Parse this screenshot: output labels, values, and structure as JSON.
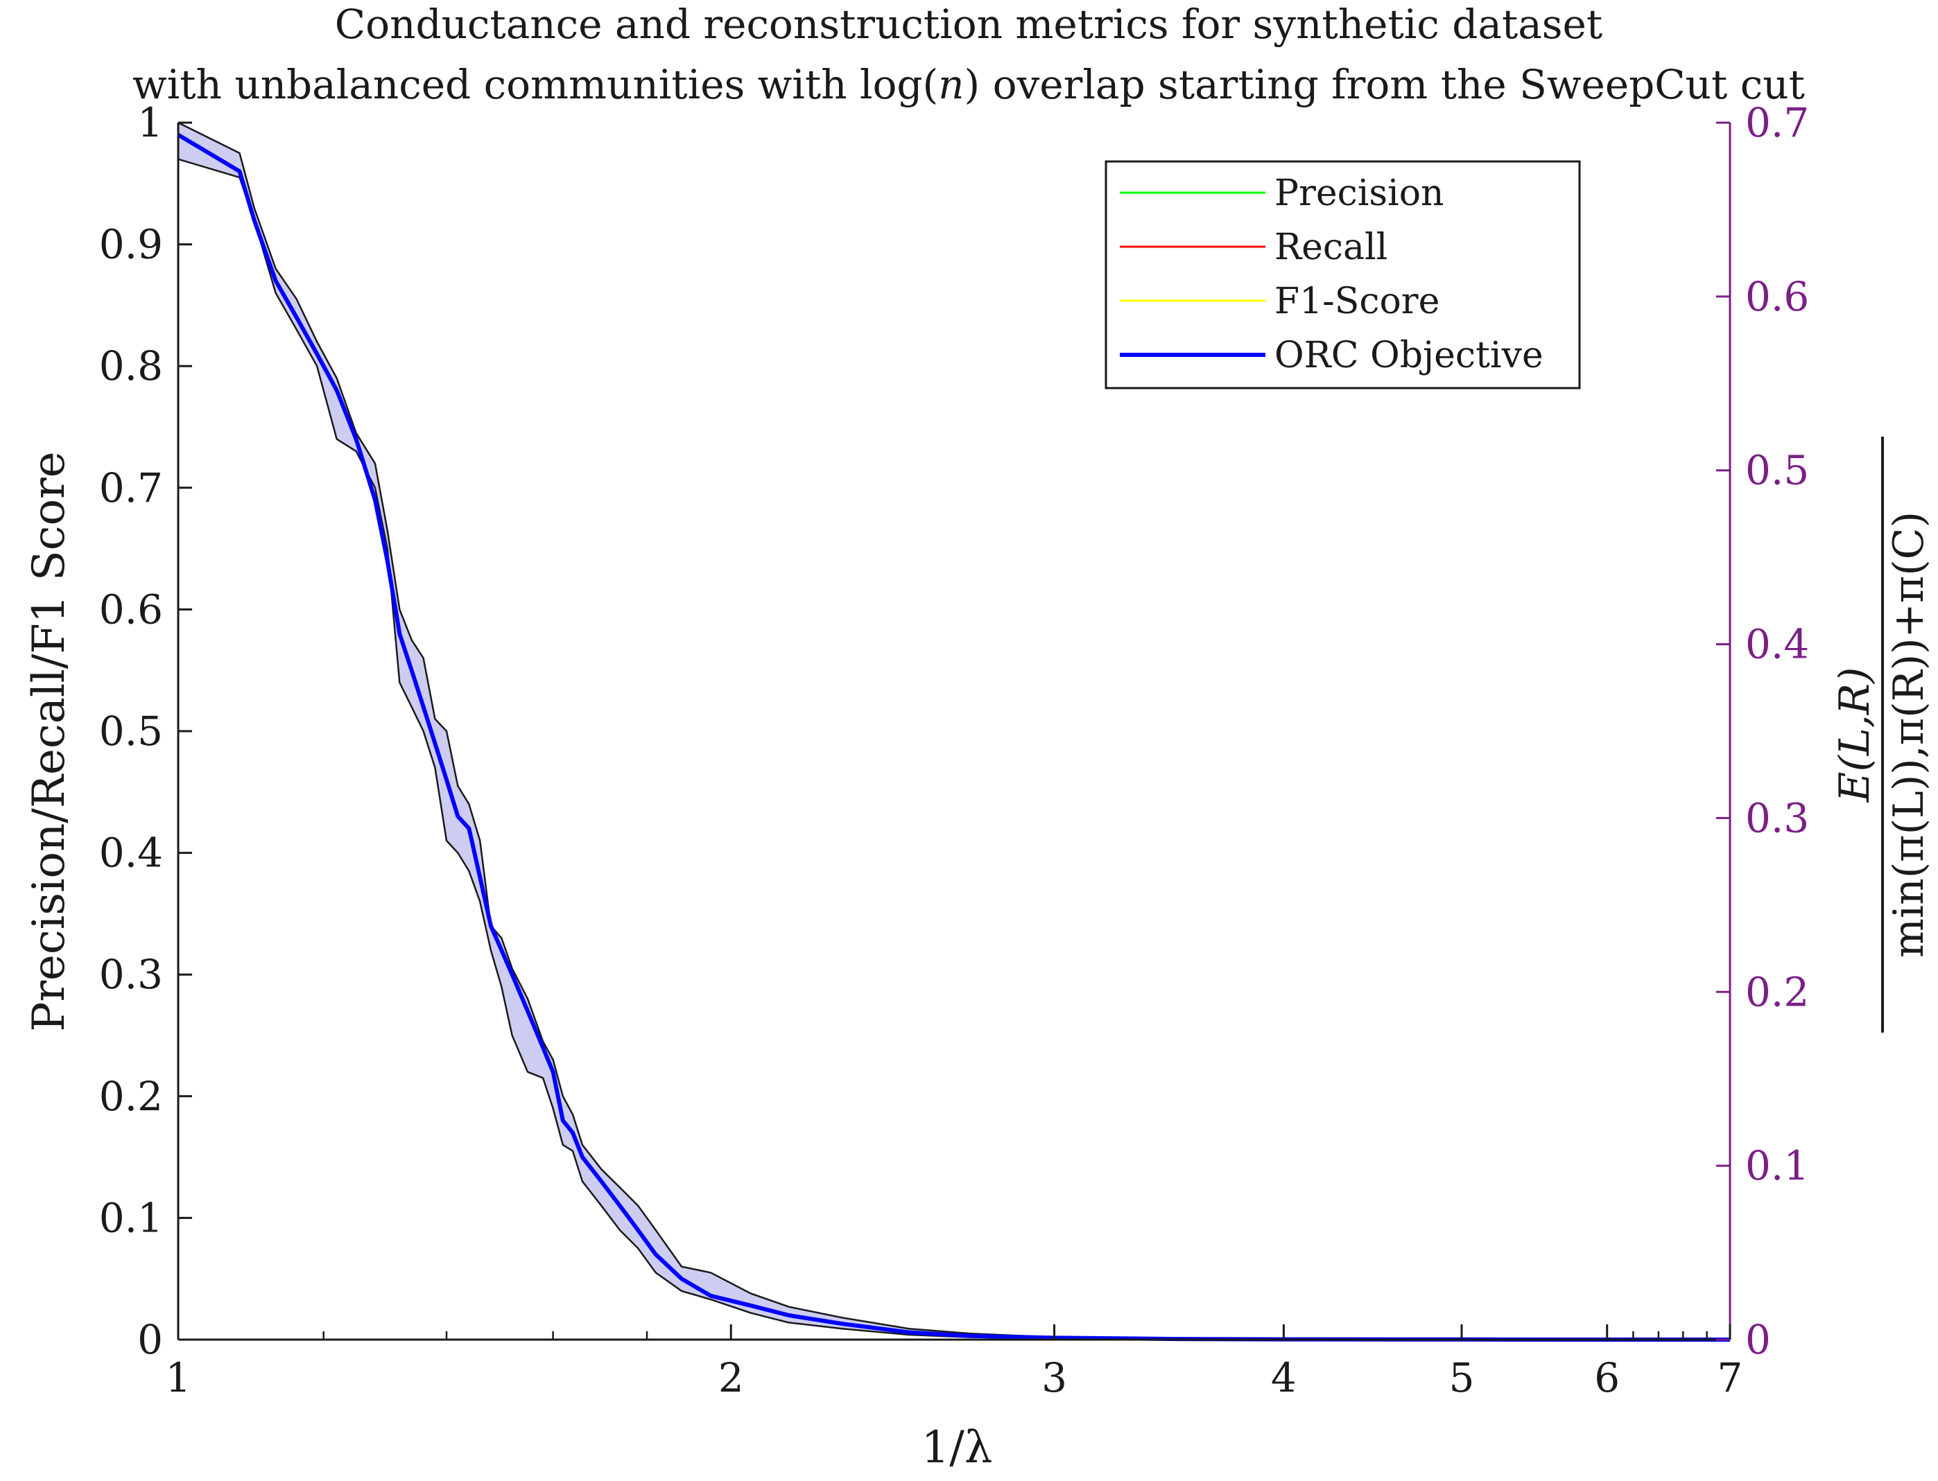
{
  "chart_data": {
    "type": "line",
    "title": "Conductance and reconstruction metrics for synthetic dataset",
    "title_line2_prefix": "with unbalanced communities with log(",
    "title_line2_var": "n",
    "title_line2_suffix": ") overlap starting from the SweepCut cut",
    "xlabel": "1/λ",
    "ylabel": "Precision/Recall/F1 Score",
    "ylabel_right": {
      "numerator": "E(L,R)",
      "denominator": "min(π(L)),π(R))+π(C)"
    },
    "xscale": "log",
    "xlim": [
      1,
      7
    ],
    "ylim": [
      0,
      1
    ],
    "ylim_right": [
      0,
      0.7
    ],
    "x_ticks": [
      "1",
      "2",
      "3",
      "4",
      "5",
      "6",
      "7"
    ],
    "y_ticks": [
      "0",
      "0.1",
      "0.2",
      "0.3",
      "0.4",
      "0.5",
      "0.6",
      "0.7",
      "0.8",
      "0.9",
      "1"
    ],
    "y_ticks_right": [
      "0",
      "0.1",
      "0.2",
      "0.3",
      "0.4",
      "0.5",
      "0.6",
      "0.7"
    ],
    "grid": false,
    "legend_position": "top-right",
    "colors": {
      "precision": "#00ff00",
      "recall": "#ff0000",
      "f1": "#ffff00",
      "orc": "#0000ff",
      "band": "#c8c8f0",
      "right_axis": "#7a1f86"
    },
    "legend": [
      {
        "name": "Precision",
        "color": "#00ff00"
      },
      {
        "name": "Recall",
        "color": "#ff0000"
      },
      {
        "name": "F1-Score",
        "color": "#ffff00"
      },
      {
        "name": "ORC Objective",
        "color": "#0000ff"
      }
    ],
    "series": [
      {
        "name": "ORC Objective",
        "x": [
          1.0,
          1.08,
          1.1,
          1.13,
          1.16,
          1.19,
          1.22,
          1.25,
          1.28,
          1.3,
          1.32,
          1.34,
          1.36,
          1.38,
          1.4,
          1.42,
          1.44,
          1.46,
          1.48,
          1.5,
          1.52,
          1.55,
          1.58,
          1.6,
          1.62,
          1.64,
          1.66,
          1.7,
          1.74,
          1.78,
          1.82,
          1.88,
          1.95,
          2.05,
          2.15,
          2.3,
          2.5,
          2.7,
          3.0,
          3.5,
          4.0,
          5.0,
          6.0,
          7.0
        ],
        "y": [
          0.99,
          0.96,
          0.92,
          0.87,
          0.84,
          0.81,
          0.78,
          0.74,
          0.69,
          0.64,
          0.58,
          0.55,
          0.52,
          0.49,
          0.46,
          0.43,
          0.42,
          0.38,
          0.34,
          0.32,
          0.3,
          0.27,
          0.24,
          0.22,
          0.18,
          0.17,
          0.15,
          0.13,
          0.11,
          0.09,
          0.07,
          0.05,
          0.036,
          0.028,
          0.02,
          0.013,
          0.006,
          0.003,
          0.0015,
          0.0005,
          0.0002,
          0.0001,
          0.0,
          0.0
        ],
        "lower": [
          0.97,
          0.955,
          0.92,
          0.86,
          0.83,
          0.8,
          0.74,
          0.73,
          0.7,
          0.65,
          0.54,
          0.52,
          0.5,
          0.47,
          0.41,
          0.4,
          0.385,
          0.36,
          0.32,
          0.29,
          0.25,
          0.22,
          0.215,
          0.19,
          0.16,
          0.155,
          0.13,
          0.11,
          0.09,
          0.075,
          0.055,
          0.04,
          0.033,
          0.022,
          0.014,
          0.009,
          0.004,
          0.002,
          0.001,
          0.0003,
          0.0001,
          0.0,
          0.0,
          0.0
        ],
        "upper": [
          1.0,
          0.975,
          0.93,
          0.88,
          0.855,
          0.82,
          0.79,
          0.745,
          0.72,
          0.665,
          0.6,
          0.575,
          0.56,
          0.51,
          0.5,
          0.455,
          0.44,
          0.41,
          0.34,
          0.33,
          0.305,
          0.28,
          0.245,
          0.23,
          0.2,
          0.185,
          0.16,
          0.14,
          0.125,
          0.11,
          0.09,
          0.06,
          0.055,
          0.038,
          0.027,
          0.018,
          0.009,
          0.005,
          0.002,
          0.0008,
          0.0003,
          0.0001,
          0.0,
          0.0
        ]
      }
    ]
  }
}
